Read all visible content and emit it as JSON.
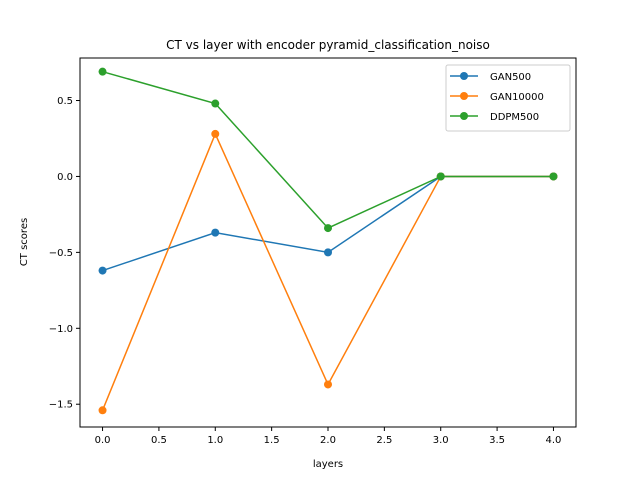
{
  "chart_data": {
    "type": "line",
    "title": "CT vs layer with encoder pyramid_classification_noiso",
    "xlabel": "layers",
    "ylabel": "CT scores",
    "xlim": [
      -0.2,
      4.2
    ],
    "ylim": [
      -1.65,
      0.78
    ],
    "xticks": [
      0.0,
      0.5,
      1.0,
      1.5,
      2.0,
      2.5,
      3.0,
      3.5,
      4.0
    ],
    "xtick_labels": [
      "0.0",
      "0.5",
      "1.0",
      "1.5",
      "2.0",
      "2.5",
      "3.0",
      "3.5",
      "4.0"
    ],
    "yticks": [
      -1.5,
      -1.0,
      -0.5,
      0.0,
      0.5
    ],
    "ytick_labels": [
      "−1.5",
      "−1.0",
      "−0.5",
      "0.0",
      "0.5"
    ],
    "grid": false,
    "legend_position": "top-right",
    "x": [
      0,
      1,
      2,
      3,
      4
    ],
    "series": [
      {
        "name": "GAN500",
        "color": "#1f77b4",
        "values": [
          -0.62,
          -0.37,
          -0.5,
          0.0,
          0.0
        ]
      },
      {
        "name": "GAN10000",
        "color": "#ff7f0e",
        "values": [
          -1.54,
          0.28,
          -1.37,
          0.0,
          0.0
        ]
      },
      {
        "name": "DDPM500",
        "color": "#2ca02c",
        "values": [
          0.69,
          0.48,
          -0.34,
          0.0,
          0.0
        ]
      }
    ]
  }
}
